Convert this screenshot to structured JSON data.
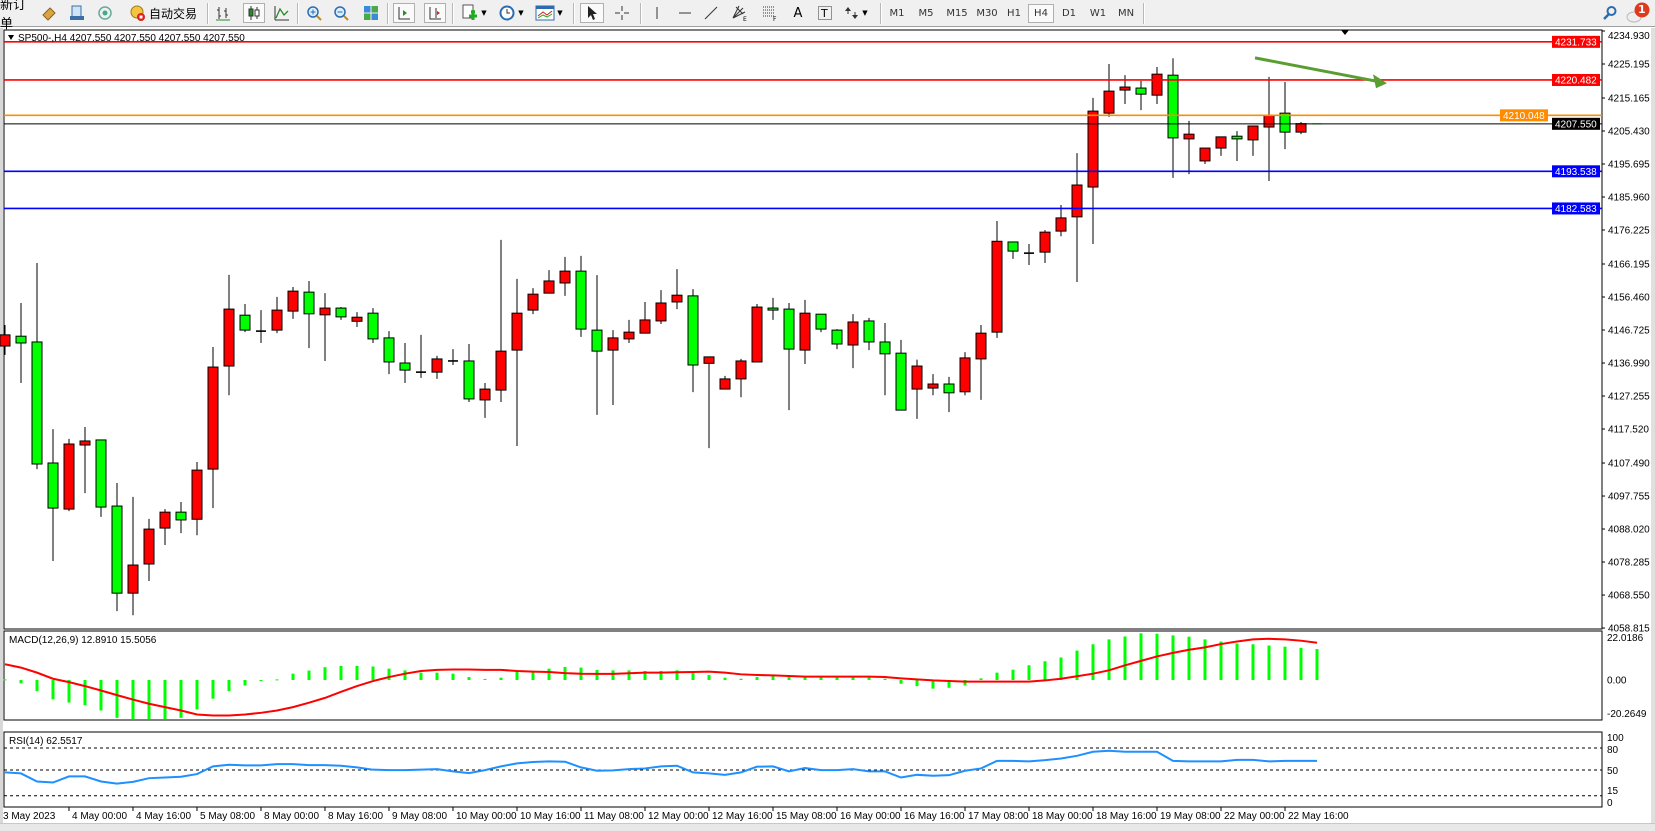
{
  "toolbar": {
    "new_order_label": "新订单",
    "auto_trading_label": "自动交易",
    "timeframes": [
      "M1",
      "M5",
      "M15",
      "M30",
      "H1",
      "H4",
      "D1",
      "W1",
      "MN"
    ],
    "active_timeframe": "H4",
    "text_tool_label": "A",
    "text_label_tool": "T",
    "fibo_fan_suffix": "E",
    "fibo_suffix": "F",
    "notification_count": "1",
    "icons": [
      "market-watch-icon",
      "navigator-icon",
      "signal-icon",
      "auto-trading-icon",
      "bar-chart-icon",
      "candlestick-icon",
      "line-chart-icon",
      "zoom-in-icon",
      "zoom-out-icon",
      "tile-windows-icon",
      "auto-scroll-icon",
      "chart-shift-icon",
      "indicators-icon",
      "periods-icon",
      "templates-icon",
      "cursor-icon",
      "crosshair-icon",
      "vertical-line-icon",
      "horizontal-line-icon",
      "trendline-icon",
      "fibo-fan-icon",
      "fibo-retracement-icon",
      "text-icon",
      "text-label-icon",
      "arrows-icon",
      "search-icon",
      "chat-bubble-icon"
    ]
  },
  "chart": {
    "header": "SP500-,H4  4207.550 4207.550 4207.550 4207.550",
    "symbol": "SP500-",
    "timeframe": "H4",
    "colors": {
      "bull": "#ff0000",
      "bear": "#00ff00",
      "macd_hist": "#00ff00",
      "macd_signal": "#ff0000",
      "rsi": "#1e90ff",
      "trend_arrow": "#5a9e32"
    },
    "price_axis": [
      "4234.930",
      "4225.195",
      "4215.165",
      "4205.430",
      "4195.695",
      "4185.960",
      "4176.225",
      "4166.195",
      "4156.460",
      "4146.725",
      "4136.990",
      "4127.255",
      "4117.520",
      "4107.490",
      "4097.755",
      "4088.020",
      "4078.285",
      "4068.550",
      "4058.815"
    ],
    "price_range": [
      4058.815,
      4234.93
    ],
    "levels": [
      {
        "price": "4231.733",
        "color": "#ff0000"
      },
      {
        "price": "4220.482",
        "color": "#ff0000"
      },
      {
        "price": "4210.048",
        "color": "#ff8c00"
      },
      {
        "price": "4207.550",
        "color": "#000000",
        "bid": true
      },
      {
        "price": "4193.538",
        "color": "#0000ff"
      },
      {
        "price": "4182.583",
        "color": "#0000ff"
      }
    ],
    "time_axis": [
      "3 May 2023",
      "4 May 00:00",
      "4 May 16:00",
      "5 May 08:00",
      "8 May 00:00",
      "8 May 16:00",
      "9 May 08:00",
      "10 May 00:00",
      "10 May 16:00",
      "11 May 08:00",
      "12 May 00:00",
      "12 May 16:00",
      "15 May 08:00",
      "16 May 00:00",
      "16 May 16:00",
      "17 May 08:00",
      "18 May 00:00",
      "18 May 16:00",
      "19 May 08:00",
      "22 May 00:00",
      "22 May 16:00"
    ],
    "trend_arrow": {
      "direction": "down-right",
      "from_price": 4227.0,
      "to_price": 4219.5
    }
  },
  "chart_data": [
    {
      "type": "candlestick",
      "format": "OHLC",
      "ylim": [
        4058.815,
        4234.93
      ],
      "candles": [
        [
          4142.0,
          4148.2,
          4139.4,
          4145.3
        ],
        [
          4144.9,
          4154.7,
          4131.1,
          4142.9
        ],
        [
          4143.2,
          4166.5,
          4105.7,
          4107.2
        ],
        [
          4107.5,
          4117.5,
          4078.6,
          4094.2
        ],
        [
          4093.9,
          4114.6,
          4093.3,
          4113.1
        ],
        [
          4112.8,
          4118.1,
          4098.6,
          4114.0
        ],
        [
          4114.3,
          4114.3,
          4091.6,
          4094.5
        ],
        [
          4094.8,
          4101.6,
          4063.8,
          4069.1
        ],
        [
          4069.1,
          4097.5,
          4062.6,
          4077.4
        ],
        [
          4077.7,
          4091.0,
          4072.7,
          4088.0
        ],
        [
          4088.3,
          4093.9,
          4083.3,
          4093.0
        ],
        [
          4093.0,
          4096.0,
          4086.8,
          4090.7
        ],
        [
          4090.9,
          4107.8,
          4086.2,
          4105.4
        ],
        [
          4105.7,
          4141.7,
          4094.2,
          4135.8
        ],
        [
          4136.1,
          4163.0,
          4127.5,
          4152.9
        ],
        [
          4151.1,
          4154.4,
          4146.1,
          4146.7
        ],
        [
          4146.4,
          4152.6,
          4142.9,
          4146.4
        ],
        [
          4146.7,
          4156.5,
          4145.8,
          4152.6
        ],
        [
          4152.3,
          4159.4,
          4150.0,
          4158.2
        ],
        [
          4157.9,
          4161.2,
          4141.4,
          4151.5
        ],
        [
          4151.2,
          4157.6,
          4137.6,
          4153.2
        ],
        [
          4153.2,
          4153.5,
          4149.7,
          4150.6
        ],
        [
          4149.3,
          4152.0,
          4147.6,
          4150.5
        ],
        [
          4151.7,
          4153.2,
          4142.9,
          4144.1
        ],
        [
          4144.4,
          4146.4,
          4133.7,
          4137.3
        ],
        [
          4137.0,
          4142.9,
          4131.1,
          4134.9
        ],
        [
          4134.3,
          4145.3,
          4132.6,
          4134.3
        ],
        [
          4134.3,
          4139.1,
          4132.3,
          4138.2
        ],
        [
          4137.6,
          4141.1,
          4136.4,
          4137.6
        ],
        [
          4137.6,
          4142.6,
          4125.5,
          4126.4
        ],
        [
          4126.1,
          4131.1,
          4120.8,
          4129.3
        ],
        [
          4129.0,
          4173.3,
          4125.5,
          4140.5
        ],
        [
          4140.8,
          4161.8,
          4112.5,
          4151.7
        ],
        [
          4152.6,
          4159.1,
          4151.4,
          4157.3
        ],
        [
          4157.6,
          4164.4,
          4157.6,
          4161.2
        ],
        [
          4160.6,
          4168.3,
          4156.8,
          4164.1
        ],
        [
          4164.1,
          4168.6,
          4144.7,
          4147.0
        ],
        [
          4146.7,
          4162.9,
          4121.7,
          4140.5
        ],
        [
          4140.8,
          4146.7,
          4124.6,
          4144.4
        ],
        [
          4144.1,
          4149.7,
          4142.9,
          4146.1
        ],
        [
          4145.8,
          4155.0,
          4145.8,
          4149.7
        ],
        [
          4149.4,
          4158.5,
          4148.5,
          4154.7
        ],
        [
          4155.0,
          4164.7,
          4152.9,
          4157.0
        ],
        [
          4156.8,
          4158.8,
          4128.4,
          4136.4
        ],
        [
          4136.9,
          4138.8,
          4111.9,
          4138.8
        ],
        [
          4129.3,
          4133.2,
          4129.3,
          4132.3
        ],
        [
          4132.3,
          4138.2,
          4126.9,
          4137.6
        ],
        [
          4137.3,
          4154.4,
          4137.3,
          4153.5
        ],
        [
          4153.2,
          4156.2,
          4149.7,
          4152.6
        ],
        [
          4152.9,
          4154.7,
          4123.1,
          4141.1
        ],
        [
          4140.8,
          4155.6,
          4136.7,
          4151.7
        ],
        [
          4151.4,
          4151.4,
          4146.1,
          4147.0
        ],
        [
          4146.7,
          4147.0,
          4141.1,
          4142.6
        ],
        [
          4142.3,
          4151.4,
          4135.5,
          4149.1
        ],
        [
          4149.4,
          4150.3,
          4140.8,
          4143.2
        ],
        [
          4143.2,
          4148.8,
          4127.5,
          4139.7
        ],
        [
          4139.9,
          4143.8,
          4123.1,
          4123.1
        ],
        [
          4129.3,
          4138.0,
          4120.5,
          4136.1
        ],
        [
          4129.6,
          4133.7,
          4127.5,
          4130.8
        ],
        [
          4130.8,
          4132.9,
          4122.5,
          4128.2
        ],
        [
          4128.5,
          4140.2,
          4127.5,
          4138.5
        ],
        [
          4138.2,
          4148.2,
          4126.1,
          4145.8
        ],
        [
          4146.1,
          4178.9,
          4144.4,
          4172.9
        ],
        [
          4172.7,
          4172.7,
          4167.7,
          4170.0
        ],
        [
          4169.4,
          4172.1,
          4165.9,
          4169.4
        ],
        [
          4169.7,
          4176.2,
          4166.5,
          4175.6
        ],
        [
          4175.9,
          4183.6,
          4174.4,
          4179.8
        ],
        [
          4180.1,
          4198.9,
          4160.9,
          4189.5
        ],
        [
          4188.9,
          4215.2,
          4172.1,
          4211.3
        ],
        [
          4210.7,
          4225.2,
          4209.6,
          4217.2
        ],
        [
          4217.5,
          4221.9,
          4213.4,
          4218.4
        ],
        [
          4218.1,
          4220.2,
          4211.6,
          4216.3
        ],
        [
          4216.0,
          4224.3,
          4213.4,
          4222.2
        ],
        [
          4221.9,
          4226.9,
          4191.6,
          4203.4
        ],
        [
          4203.1,
          4208.4,
          4192.7,
          4204.5
        ],
        [
          4196.6,
          4200.4,
          4195.7,
          4200.4
        ],
        [
          4200.4,
          4203.7,
          4198.1,
          4203.7
        ],
        [
          4203.9,
          4205.4,
          4196.6,
          4203.1
        ],
        [
          4202.8,
          4206.9,
          4198.1,
          4206.9
        ],
        [
          4206.6,
          4221.4,
          4190.7,
          4210.0
        ],
        [
          4210.7,
          4219.9,
          4200.1,
          4205.1
        ],
        [
          4205.1,
          4208.1,
          4204.5,
          4207.6
        ],
        [
          4207.55,
          4207.55,
          4207.55,
          4207.55
        ]
      ]
    },
    {
      "type": "bar+line",
      "title": "MACD(12,26,9) 12.8910 15.5056",
      "ylim": [
        -20.2649,
        22.0186
      ],
      "axis_labels": [
        "22.0186",
        "0.00",
        "-20.2649"
      ],
      "histogram": [
        0.26,
        -1.4,
        -4.64,
        -8.06,
        -9.37,
        -10.51,
        -12.7,
        -15.77,
        -17.43,
        -17.87,
        -17.43,
        -15.77,
        -12.26,
        -7.8,
        -4.64,
        -2.28,
        0.0,
        0.26,
        2.63,
        3.94,
        5.34,
        5.87,
        5.87,
        5.61,
        4.73,
        4.03,
        3.07,
        3.07,
        2.63,
        1.23,
        0.44,
        0.96,
        3.33,
        3.5,
        4.73,
        5.43,
        5.17,
        4.2,
        4.03,
        4.03,
        3.77,
        3.77,
        4.03,
        3.33,
        2.1,
        0.96,
        0.53,
        1.23,
        2.1,
        1.93,
        1.66,
        1.66,
        1.58,
        1.58,
        1.58,
        0.53,
        -1.58,
        -2.54,
        -3.59,
        -3.24,
        -2.28,
        0.7,
        3.07,
        4.29,
        6.13,
        7.8,
        9.37,
        12.26,
        14.89,
        16.91,
        18.13,
        19.45,
        19.27,
        18.57,
        18.05,
        16.91,
        16.03,
        15.24,
        14.89,
        14.37,
        13.9,
        13.4,
        12.89
      ],
      "signal": [
        6.57,
        5.17,
        3.07,
        0.53,
        -0.88,
        -2.54,
        -4.38,
        -6.31,
        -8.15,
        -9.9,
        -11.3,
        -12.7,
        -14.37,
        -14.8,
        -14.8,
        -14.37,
        -13.67,
        -12.7,
        -11.3,
        -9.46,
        -7.45,
        -4.91,
        -2.54,
        -0.44,
        1.23,
        2.63,
        3.77,
        4.2,
        4.38,
        4.38,
        4.2,
        4.2,
        3.77,
        3.5,
        3.33,
        2.89,
        2.63,
        2.54,
        2.54,
        2.8,
        3.07,
        3.07,
        3.24,
        3.33,
        3.5,
        3.07,
        2.37,
        2.1,
        1.93,
        1.66,
        1.4,
        1.4,
        1.4,
        1.4,
        1.4,
        1.23,
        0.7,
        0.26,
        -0.18,
        -0.44,
        -0.7,
        -0.7,
        -0.7,
        -0.7,
        -0.7,
        -0.18,
        0.53,
        1.58,
        2.63,
        4.03,
        6.13,
        7.97,
        9.81,
        11.3,
        12.61,
        13.58,
        14.98,
        16.03,
        16.91,
        17.17,
        16.91,
        16.38,
        15.51
      ]
    },
    {
      "type": "line",
      "title": "RSI(14) 62.5517",
      "ylim": [
        0,
        100
      ],
      "axis_labels": [
        "100",
        "80",
        "50",
        "15",
        "0"
      ],
      "levels": [
        80,
        50,
        15
      ],
      "values": [
        46.8,
        45.4,
        34.4,
        33.0,
        41.3,
        41.3,
        34.4,
        31.5,
        33.9,
        38.9,
        39.8,
        40.8,
        44.5,
        55.0,
        57.3,
        56.3,
        56.3,
        58.1,
        58.1,
        56.8,
        56.8,
        55.9,
        53.6,
        50.5,
        49.9,
        49.9,
        50.5,
        51.3,
        48.2,
        45.8,
        49.9,
        55.0,
        59.1,
        61.0,
        61.8,
        61.4,
        53.6,
        49.0,
        49.5,
        51.3,
        52.2,
        55.0,
        55.9,
        46.8,
        45.4,
        43.5,
        46.8,
        54.6,
        55.0,
        48.2,
        52.7,
        49.9,
        49.9,
        51.3,
        48.2,
        48.2,
        39.8,
        43.5,
        42.2,
        43.0,
        49.0,
        52.2,
        62.5,
        62.5,
        61.8,
        63.5,
        65.7,
        69.4,
        74.9,
        76.3,
        74.9,
        74.9,
        74.9,
        62.5,
        61.8,
        61.8,
        61.8,
        63.9,
        63.9,
        61.8,
        62.5,
        62.5,
        62.55
      ]
    }
  ]
}
